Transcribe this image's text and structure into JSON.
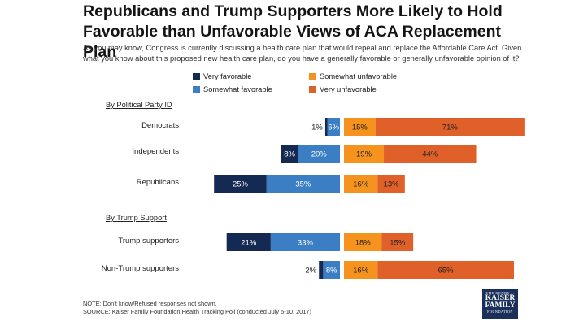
{
  "title": "Republicans and Trump Supporters More Likely to Hold Favorable than Unfavorable Views of ACA Replacement Plan",
  "question": "As you may know, Congress is currently discussing a health care plan that would repeal and replace the Affordable Care Act. Given what you know about this proposed new health care plan, do you have a generally favorable or generally unfavorable opinion of it?",
  "legend": [
    {
      "label": "Very favorable",
      "color": "#152a52"
    },
    {
      "label": "Somewhat favorable",
      "color": "#3b7ec4"
    },
    {
      "label": "Somewhat unfavorable",
      "color": "#f6931e"
    },
    {
      "label": "Very unfavorable",
      "color": "#e0602a"
    }
  ],
  "groups": [
    {
      "label": "By Political Party ID"
    },
    {
      "label": "By Trump Support"
    }
  ],
  "chart_data": {
    "type": "bar",
    "subtype": "diverging-stacked-horizontal",
    "title": "Republicans and Trump Supporters More Likely to Hold Favorable than Unfavorable Views of ACA Replacement Plan",
    "categories": [
      "Democrats",
      "Independents",
      "Republicans",
      "Trump supporters",
      "Non-Trump supporters"
    ],
    "series": [
      {
        "name": "Very favorable",
        "values": [
          1,
          8,
          25,
          21,
          2
        ],
        "color": "#152a52"
      },
      {
        "name": "Somewhat favorable",
        "values": [
          6,
          20,
          35,
          33,
          8
        ],
        "color": "#3b7ec4"
      },
      {
        "name": "Somewhat unfavorable",
        "values": [
          15,
          19,
          16,
          18,
          16
        ],
        "color": "#f6931e"
      },
      {
        "name": "Very unfavorable",
        "values": [
          71,
          44,
          13,
          15,
          65
        ],
        "color": "#e0602a"
      }
    ],
    "value_suffix": "%",
    "legend_position": "top",
    "grid": false
  },
  "footer": {
    "note": "NOTE: Don’t know/Refused responses not shown.",
    "source": "SOURCE: Kaiser Family Foundation Health Tracking Poll (conducted July 5-10, 2017)"
  },
  "logo": {
    "line1": "THE HENRY J.",
    "line2a": "KAISER",
    "line2b": "FAMILY",
    "line3": "FOUNDATION"
  }
}
